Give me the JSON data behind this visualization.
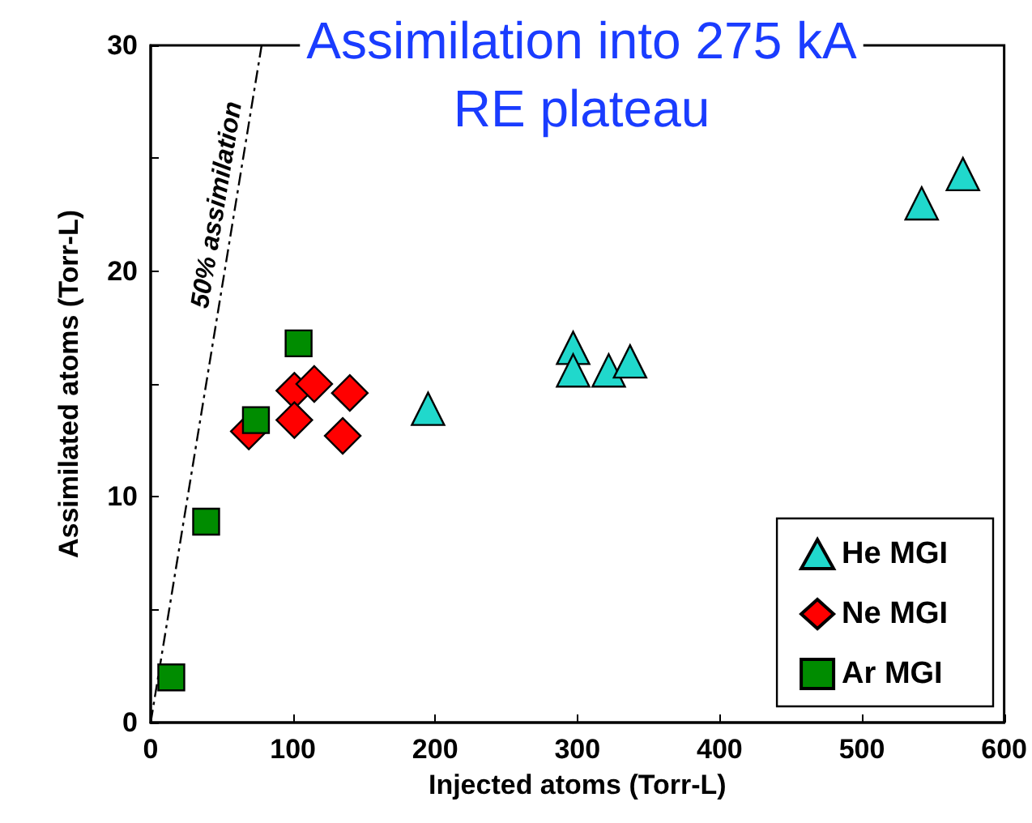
{
  "chart_data": {
    "type": "scatter",
    "title": "Assimilation into 275 kA\nRE plateau",
    "xlabel": "Injected atoms (Torr-L)",
    "ylabel": "Assimilated atoms (Torr-L)",
    "xlim": [
      0,
      600
    ],
    "xticks": [
      0,
      100,
      200,
      300,
      400,
      500,
      600
    ],
    "ylim": [
      0,
      30
    ],
    "yticks": [
      0,
      {
        "value": 5,
        "label": null
      },
      10,
      {
        "value": 15,
        "label": null
      },
      20,
      {
        "value": 25,
        "label": null
      },
      30
    ],
    "grid": false,
    "legend": "bottom right",
    "series": [
      {
        "name": "He MGI",
        "color": "#20d8cc",
        "marker": "triangle",
        "x": [
          195,
          297,
          297,
          322,
          337,
          542,
          571
        ],
        "values": [
          13.9,
          16.6,
          15.6,
          15.6,
          16.0,
          23.0,
          24.3
        ]
      },
      {
        "name": "Ne MGI",
        "color": "#ff0000",
        "marker": "diamond",
        "x": [
          69,
          101,
          115,
          101,
          140,
          135
        ],
        "values": [
          12.9,
          14.7,
          15.0,
          13.4,
          14.6,
          12.7
        ]
      },
      {
        "name": "Ar MGI",
        "color": "#008c00",
        "marker": "square",
        "x": [
          14.5,
          39,
          74,
          104
        ],
        "values": [
          2.0,
          8.9,
          13.4,
          16.8
        ]
      },
      {
        "name": "50% assimilation",
        "type": "line",
        "color": "#000000",
        "marker": "none",
        "line_style": "dashed",
        "x": [
          0,
          78
        ],
        "values": [
          0,
          30
        ]
      }
    ]
  }
}
